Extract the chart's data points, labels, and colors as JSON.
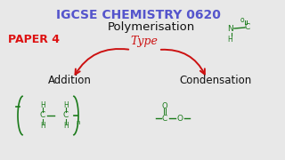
{
  "bg_color": "#e8e8e8",
  "title_text": "IGCSE CHEMISTRY 0620",
  "title_color": "#5555cc",
  "poly_text": "Polymerisation",
  "poly_color": "#111111",
  "paper_text": "PAPER 4",
  "paper_color": "#dd1111",
  "type_text": "Type",
  "type_color": "#cc1111",
  "addition_text": "Addition",
  "condensation_text": "Condensation",
  "green": "#1a7a1a",
  "red": "#cc1111",
  "black": "#111111"
}
